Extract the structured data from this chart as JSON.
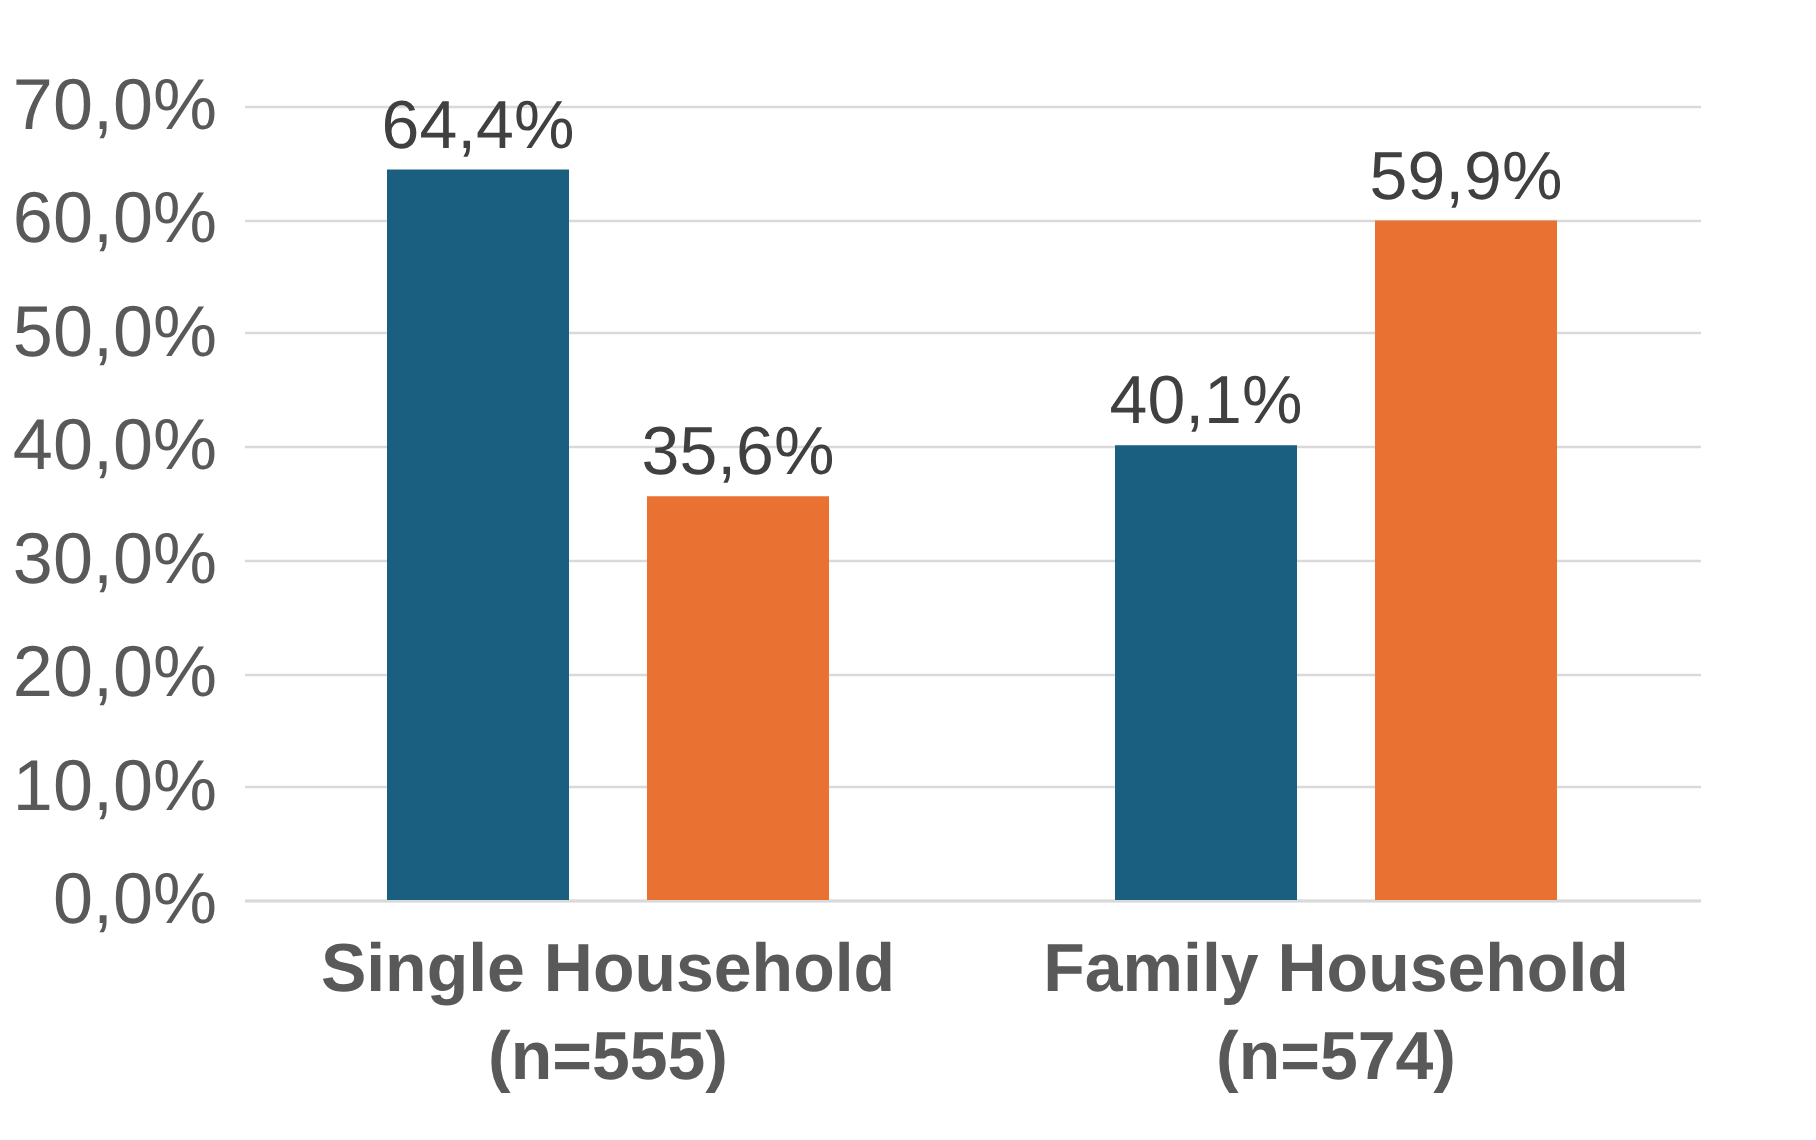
{
  "chart_data": {
    "type": "bar",
    "categories": [
      "Single Household\n(n=555)",
      "Family Household\n(n=574)"
    ],
    "series": [
      {
        "color": "#1a5f80",
        "values": [
          64.4,
          40.1
        ],
        "value_labels": [
          "64,4%",
          "40,1%"
        ]
      },
      {
        "color": "#e97132",
        "values": [
          35.6,
          59.9
        ],
        "value_labels": [
          "35,6%",
          "59,9%"
        ]
      }
    ],
    "ylim": [
      0,
      70
    ],
    "yticks": [
      {
        "value": 0,
        "label": "0,0%"
      },
      {
        "value": 10,
        "label": "10,0%"
      },
      {
        "value": 20,
        "label": "20,0%"
      },
      {
        "value": 30,
        "label": "30,0%"
      },
      {
        "value": 40,
        "label": "40,0%"
      },
      {
        "value": 50,
        "label": "50,0%"
      },
      {
        "value": 60,
        "label": "60,0%"
      },
      {
        "value": 70,
        "label": "70,0%"
      }
    ],
    "grid": "y",
    "legend": false
  }
}
